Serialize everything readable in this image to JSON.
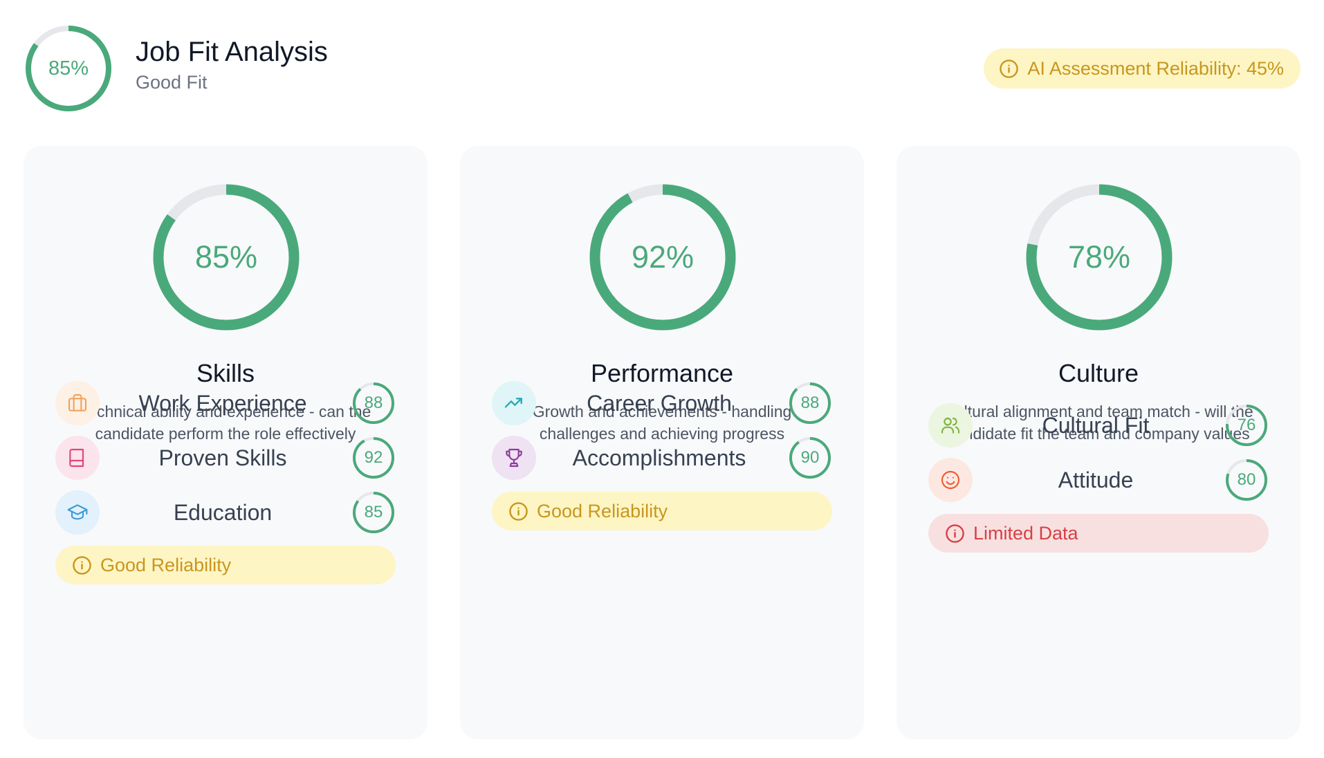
{
  "header": {
    "overall_score": 0.85,
    "overall_label": "85%",
    "title": "Job Fit Analysis",
    "subtitle": "Good Fit",
    "ai_reliability": "AI Assessment Reliability: 45%"
  },
  "colors": {
    "ring_green": "#4aa97a",
    "ring_track": "#e5e7eb",
    "warn_bg": "#fdf5c4",
    "warn_text": "#c9961e",
    "danger_bg": "#f9e0e0",
    "danger_text": "#d64045"
  },
  "cards": [
    {
      "score": 0.85,
      "score_label": "85%",
      "title": "Skills",
      "description": "Technical ability and experience - can the candidate perform the role effectively",
      "metrics": [
        {
          "label": "Work Experience",
          "value": 88,
          "icon": "briefcase-icon",
          "icon_color": "#f0a35e",
          "icon_bg": "#fdf0e4"
        },
        {
          "label": "Proven Skills",
          "value": 92,
          "icon": "book-icon",
          "icon_color": "#e0457b",
          "icon_bg": "#fbe4ec"
        },
        {
          "label": "Education",
          "value": 85,
          "icon": "graduation-cap-icon",
          "icon_color": "#3b9ad9",
          "icon_bg": "#e2f1fb"
        }
      ],
      "reliability": {
        "label": "Good Reliability",
        "level": "warn"
      }
    },
    {
      "score": 0.92,
      "score_label": "92%",
      "title": "Performance",
      "description": "Growth and achievements - handling challenges and achieving progress",
      "metrics": [
        {
          "label": "Career Growth",
          "value": 88,
          "icon": "trending-up-icon",
          "icon_color": "#2aa8b8",
          "icon_bg": "#e0f5f7"
        },
        {
          "label": "Accomplishments",
          "value": 90,
          "icon": "trophy-icon",
          "icon_color": "#8e3a9e",
          "icon_bg": "#efe2f2"
        }
      ],
      "reliability": {
        "label": "Good Reliability",
        "level": "warn"
      }
    },
    {
      "score": 0.78,
      "score_label": "78%",
      "title": "Culture",
      "description": "Cultural alignment and team match - will the candidate fit the team and company values",
      "metrics": [
        {
          "label": "Cultural Fit",
          "value": 76,
          "icon": "users-icon",
          "icon_color": "#7cb342",
          "icon_bg": "#ecf5df"
        },
        {
          "label": "Attitude",
          "value": 80,
          "icon": "smile-icon",
          "icon_color": "#ef5a34",
          "icon_bg": "#fde8e1"
        }
      ],
      "reliability": {
        "label": "Limited Data",
        "level": "danger"
      }
    }
  ]
}
